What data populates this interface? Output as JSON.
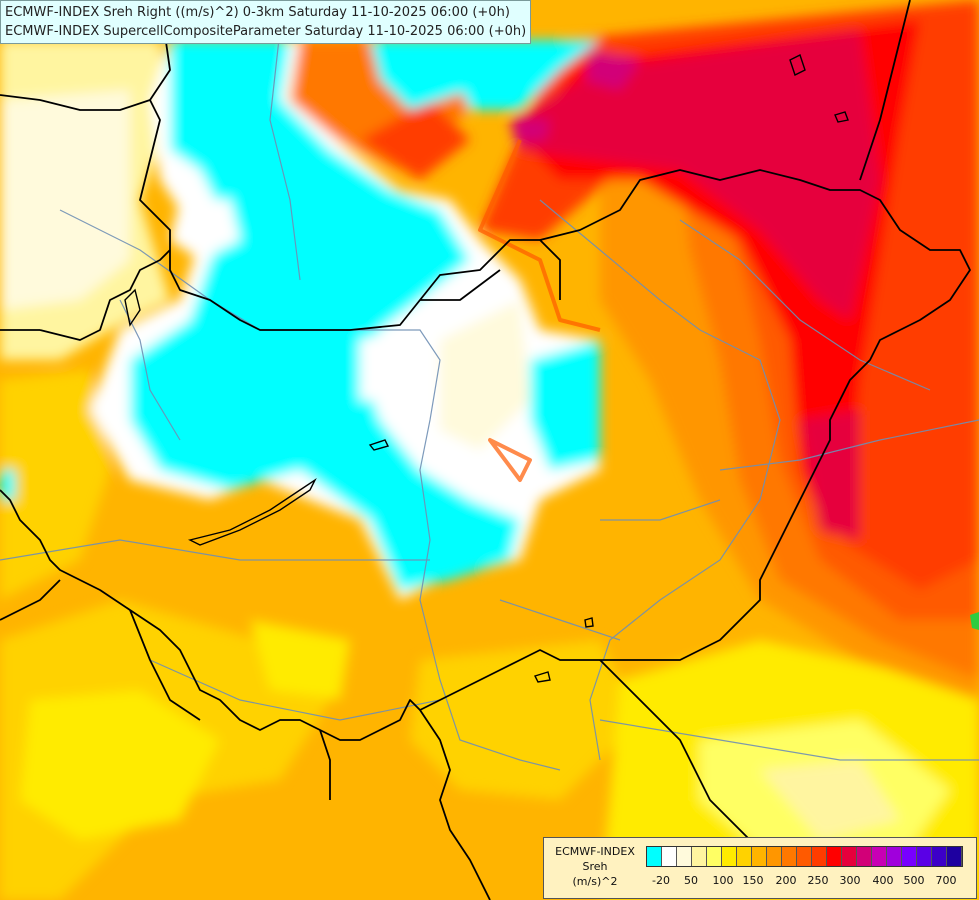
{
  "header": {
    "line1": "ECMWF-INDEX Sreh Right ((m/s)^2) 0-3km Saturday 11-10-2025 06:00 (+0h)",
    "line2": "ECMWF-INDEX SupercellCompositeParameter Saturday 11-10-2025 06:00 (+0h)"
  },
  "legend": {
    "line1": "ECMWF-INDEX",
    "line2": "Sreh",
    "line3": "(m/s)^2",
    "colors": [
      "#00ffff",
      "#ffffff",
      "#fffadc",
      "#fff5a0",
      "#ffff64",
      "#ffeb00",
      "#ffd200",
      "#ffb400",
      "#ff9600",
      "#ff7800",
      "#ff5a00",
      "#ff3c00",
      "#ff0000",
      "#e6003c",
      "#d20078",
      "#c800b4",
      "#a000dc",
      "#7800ff",
      "#5a00e6",
      "#3c00c8",
      "#1e00a0"
    ],
    "labels": [
      "-20",
      "50",
      "100",
      "150",
      "200",
      "250",
      "300",
      "400",
      "500",
      "700"
    ]
  },
  "map": {
    "region": "Central Europe (Hungary and surroundings)"
  }
}
